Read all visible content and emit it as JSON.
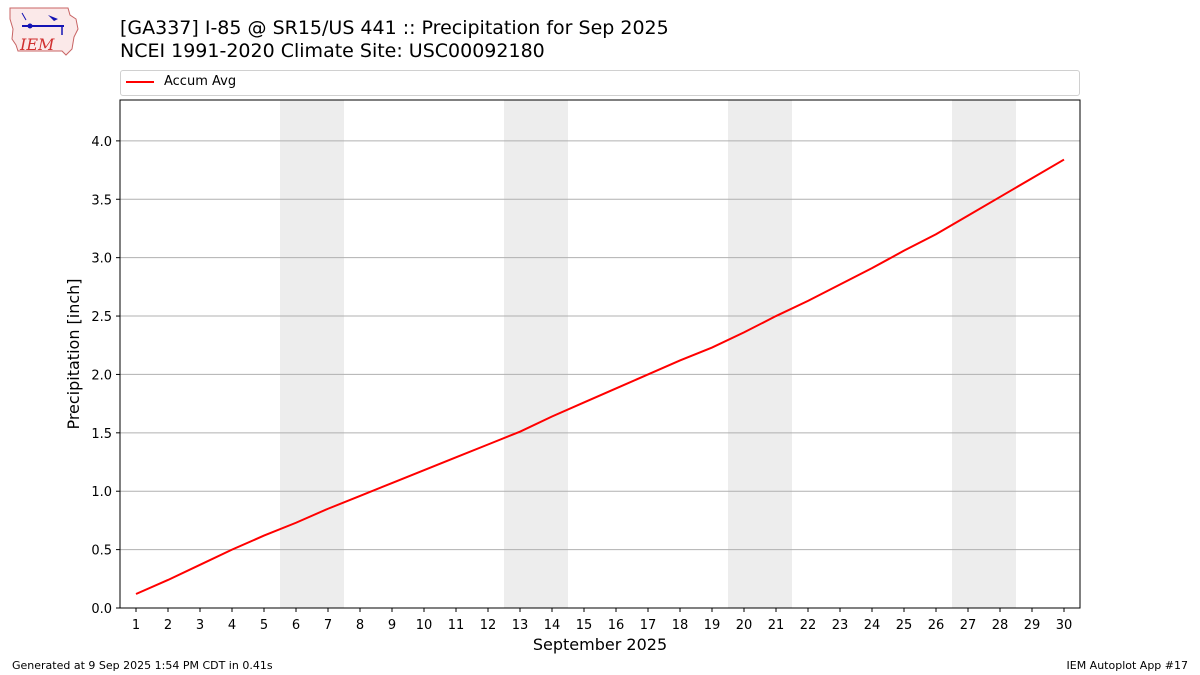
{
  "header": {
    "logo_text": "IEM",
    "title_line1": "[GA337] I-85 @ SR15/US 441 :: Precipitation for Sep 2025",
    "title_line2": "NCEI 1991-2020 Climate Site: USC00092180"
  },
  "legend": {
    "label": "Accum Avg",
    "color": "#ff0000"
  },
  "chart_data": {
    "type": "line",
    "title": "[GA337] I-85 @ SR15/US 441 :: Precipitation for Sep 2025",
    "subtitle": "NCEI 1991-2020 Climate Site: USC00092180",
    "xlabel": "September 2025",
    "ylabel": "Precipitation [inch]",
    "x": [
      1,
      2,
      3,
      4,
      5,
      6,
      7,
      8,
      9,
      10,
      11,
      12,
      13,
      14,
      15,
      16,
      17,
      18,
      19,
      20,
      21,
      22,
      23,
      24,
      25,
      26,
      27,
      28,
      29,
      30
    ],
    "xlim": [
      0.5,
      30.5
    ],
    "ylim": [
      0,
      4.35
    ],
    "yticks": [
      0.0,
      0.5,
      1.0,
      1.5,
      2.0,
      2.5,
      3.0,
      3.5,
      4.0
    ],
    "ytick_labels": [
      "0.0",
      "0.5",
      "1.0",
      "1.5",
      "2.0",
      "2.5",
      "3.0",
      "3.5",
      "4.0"
    ],
    "grid": "horizontal",
    "weekend_shading": [
      [
        5.5,
        7.5
      ],
      [
        12.5,
        14.5
      ],
      [
        19.5,
        21.5
      ],
      [
        26.5,
        28.5
      ]
    ],
    "series": [
      {
        "name": "Accum Avg",
        "color": "#ff0000",
        "values": [
          0.12,
          0.24,
          0.37,
          0.5,
          0.62,
          0.73,
          0.85,
          0.96,
          1.07,
          1.18,
          1.29,
          1.4,
          1.51,
          1.64,
          1.76,
          1.88,
          2.0,
          2.12,
          2.23,
          2.36,
          2.5,
          2.63,
          2.77,
          2.91,
          3.06,
          3.2,
          3.36,
          3.52,
          3.68,
          3.84
        ]
      }
    ]
  },
  "footer": {
    "left": "Generated at 9 Sep 2025 1:54 PM CDT in 0.41s",
    "right": "IEM Autoplot App #17"
  }
}
